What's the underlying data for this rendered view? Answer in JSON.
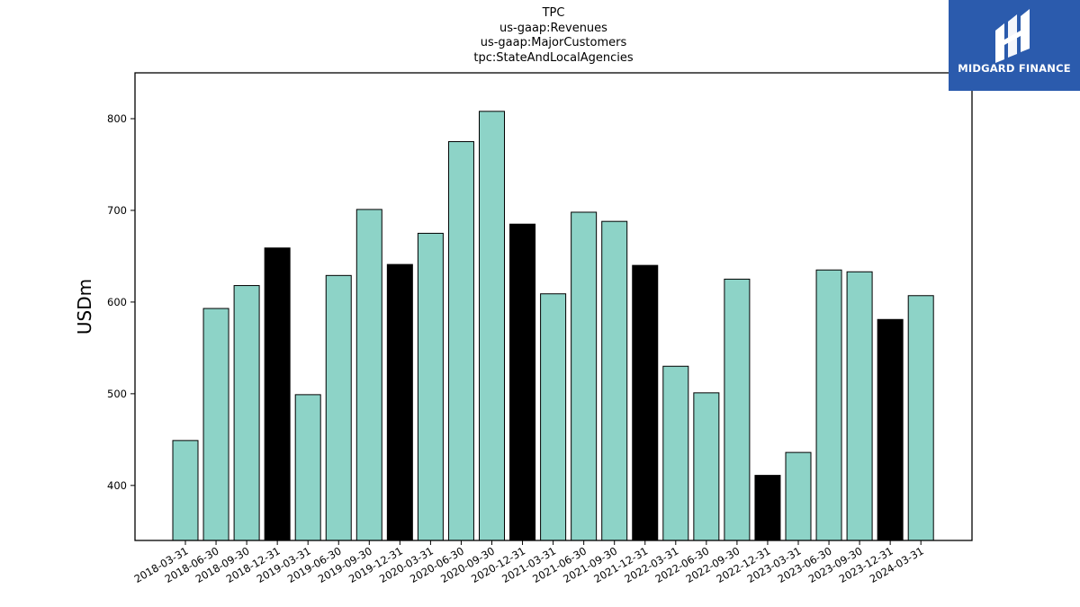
{
  "chart_data": {
    "type": "bar",
    "title_lines": [
      "TPC",
      "us-gaap:Revenues",
      "us-gaap:MajorCustomers",
      "tpc:StateAndLocalAgencies"
    ],
    "ylabel": "USDm",
    "xlabel": "",
    "ylim": [
      340,
      850
    ],
    "yticks": [
      400,
      500,
      600,
      700,
      800
    ],
    "categories": [
      "2018-03-31",
      "2018-06-30",
      "2018-09-30",
      "2018-12-31",
      "2019-03-31",
      "2019-06-30",
      "2019-09-30",
      "2019-12-31",
      "2020-03-31",
      "2020-06-30",
      "2020-09-30",
      "2020-12-31",
      "2021-03-31",
      "2021-06-30",
      "2021-09-30",
      "2021-12-31",
      "2022-03-31",
      "2022-06-30",
      "2022-09-30",
      "2022-12-31",
      "2023-03-31",
      "2023-06-30",
      "2023-09-30",
      "2023-12-31",
      "2024-03-31"
    ],
    "values": [
      449,
      593,
      618,
      659,
      499,
      629,
      701,
      641,
      675,
      775,
      808,
      685,
      609,
      698,
      688,
      640,
      530,
      501,
      625,
      411,
      436,
      635,
      633,
      581,
      607
    ],
    "colors": {
      "quarter": "#8dd3c7",
      "year_end": "#000000",
      "edge": "#000000"
    },
    "grid": false,
    "legend": "none"
  },
  "logo": {
    "text": "MIDGARD FINANCE",
    "background": "#2b5bad"
  }
}
